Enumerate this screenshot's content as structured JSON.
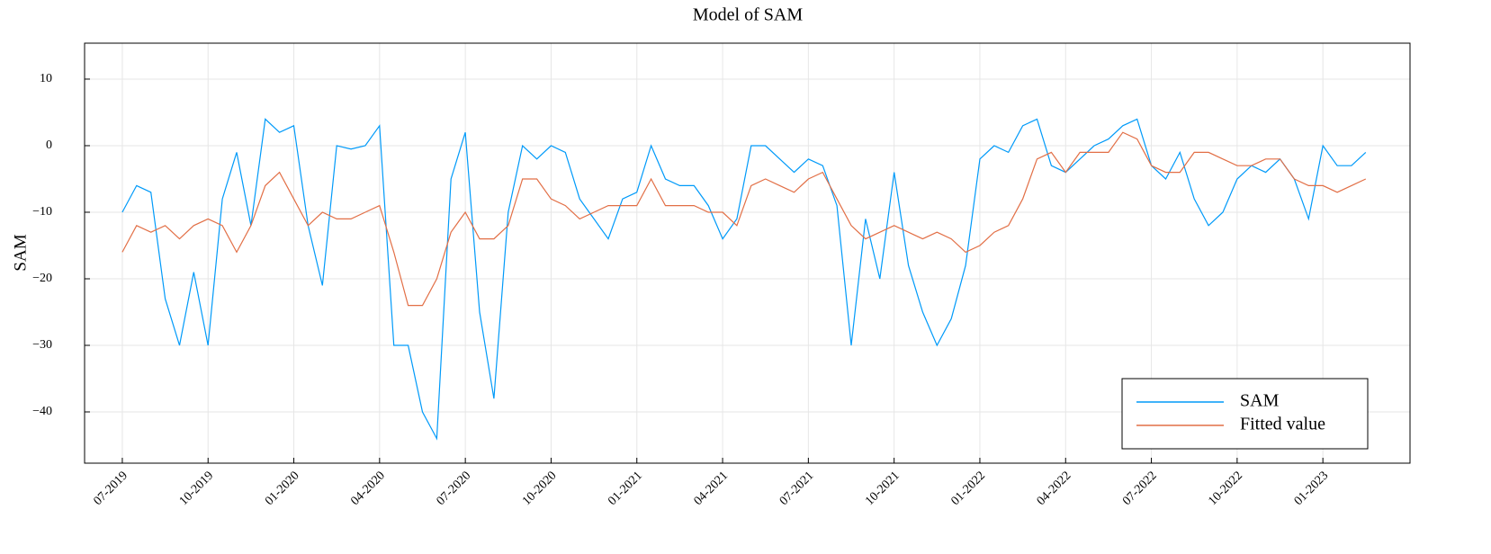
{
  "chart_data": {
    "type": "line",
    "title": "Model of SAM",
    "y_label": "SAM",
    "x": [
      2019.5,
      2019.5417,
      2019.5833,
      2019.625,
      2019.6667,
      2019.7083,
      2019.75,
      2019.7917,
      2019.8333,
      2019.875,
      2019.9167,
      2019.9583,
      2020.0,
      2020.0417,
      2020.0833,
      2020.125,
      2020.1667,
      2020.2083,
      2020.25,
      2020.2917,
      2020.3333,
      2020.375,
      2020.4167,
      2020.4583,
      2020.5,
      2020.5417,
      2020.5833,
      2020.625,
      2020.6667,
      2020.7083,
      2020.75,
      2020.7917,
      2020.8333,
      2020.875,
      2020.9167,
      2020.9583,
      2021.0,
      2021.0417,
      2021.0833,
      2021.125,
      2021.1667,
      2021.2083,
      2021.25,
      2021.2917,
      2021.3333,
      2021.375,
      2021.4167,
      2021.4583,
      2021.5,
      2021.5417,
      2021.5833,
      2021.625,
      2021.6667,
      2021.7083,
      2021.75,
      2021.7917,
      2021.8333,
      2021.875,
      2021.9167,
      2021.9583,
      2022.0,
      2022.0417,
      2022.0833,
      2022.125,
      2022.1667,
      2022.2083,
      2022.25,
      2022.2917,
      2022.3333,
      2022.375,
      2022.4167,
      2022.4583,
      2022.5,
      2022.5417,
      2022.5833,
      2022.625,
      2022.6667,
      2022.7083,
      2022.75,
      2022.7917,
      2022.8333,
      2022.875,
      2022.9167,
      2022.9583,
      2023.0,
      2023.0417,
      2023.0833,
      2023.125
    ],
    "series": [
      {
        "name": "SAM",
        "color": "#009af9",
        "values": [
          -10,
          -6,
          -7,
          -23,
          -30,
          -19,
          -30,
          -8,
          -1,
          -12,
          4,
          2,
          3,
          -12,
          -21,
          0,
          -0.5,
          0,
          3,
          -30,
          -30,
          -40,
          -44,
          -5,
          2,
          -25,
          -38,
          -10,
          0,
          -2,
          0,
          -1,
          -8,
          -11,
          -14,
          -8,
          -7,
          0,
          -5,
          -6,
          -6,
          -9,
          -14,
          -11,
          0,
          0,
          -2,
          -4,
          -2,
          -3,
          -9,
          -30,
          -11,
          -20,
          -4,
          -18,
          -25,
          -30,
          -26,
          -18,
          -2,
          0,
          -1,
          3,
          4,
          -3,
          -4,
          -2,
          0,
          1,
          3,
          4,
          -3,
          -5,
          -1,
          -8,
          -12,
          -10,
          -5,
          -3,
          -4,
          -2,
          -5,
          -11,
          0,
          -3,
          -3,
          -1
        ]
      },
      {
        "name": "Fitted value",
        "color": "#e26f46",
        "values": [
          -16,
          -12,
          -13,
          -12,
          -14,
          -12,
          -11,
          -12,
          -16,
          -12,
          -6,
          -4,
          -8,
          -12,
          -10,
          -11,
          -11,
          -10,
          -9,
          -16,
          -24,
          -24,
          -20,
          -13,
          -10,
          -14,
          -14,
          -12,
          -5,
          -5,
          -8,
          -9,
          -11,
          -10,
          -9,
          -9,
          -9,
          -5,
          -9,
          -9,
          -9,
          -10,
          -10,
          -12,
          -6,
          -5,
          -6,
          -7,
          -5,
          -4,
          -8,
          -12,
          -14,
          -13,
          -12,
          -13,
          -14,
          -13,
          -14,
          -16,
          -15,
          -13,
          -12,
          -8,
          -2,
          -1,
          -4,
          -1,
          -1,
          -1,
          2,
          1,
          -3,
          -4,
          -4,
          -1,
          -1,
          -2,
          -3,
          -3,
          -2,
          -2,
          -5,
          -6,
          -6,
          -7,
          -6,
          -5
        ]
      }
    ],
    "xlim": [
      2019.39,
      2023.254
    ],
    "xticks": [
      {
        "value": 2019.5,
        "label": "07-2019"
      },
      {
        "value": 2019.75,
        "label": "10-2019"
      },
      {
        "value": 2020.0,
        "label": "01-2020"
      },
      {
        "value": 2020.25,
        "label": "04-2020"
      },
      {
        "value": 2020.5,
        "label": "07-2020"
      },
      {
        "value": 2020.75,
        "label": "10-2020"
      },
      {
        "value": 2021.0,
        "label": "01-2021"
      },
      {
        "value": 2021.25,
        "label": "04-2021"
      },
      {
        "value": 2021.5,
        "label": "07-2021"
      },
      {
        "value": 2021.75,
        "label": "10-2021"
      },
      {
        "value": 2022.0,
        "label": "01-2022"
      },
      {
        "value": 2022.25,
        "label": "04-2022"
      },
      {
        "value": 2022.5,
        "label": "07-2022"
      },
      {
        "value": 2022.75,
        "label": "10-2022"
      },
      {
        "value": 2023.0,
        "label": "01-2023"
      }
    ],
    "ylim": [
      -47.7,
      15.4
    ],
    "yticks": [
      {
        "value": -40,
        "label": "−40"
      },
      {
        "value": -30,
        "label": "−30"
      },
      {
        "value": -20,
        "label": "−20"
      },
      {
        "value": -10,
        "label": "−10"
      },
      0,
      10
    ],
    "grid": true,
    "legend": "bottom-right"
  }
}
